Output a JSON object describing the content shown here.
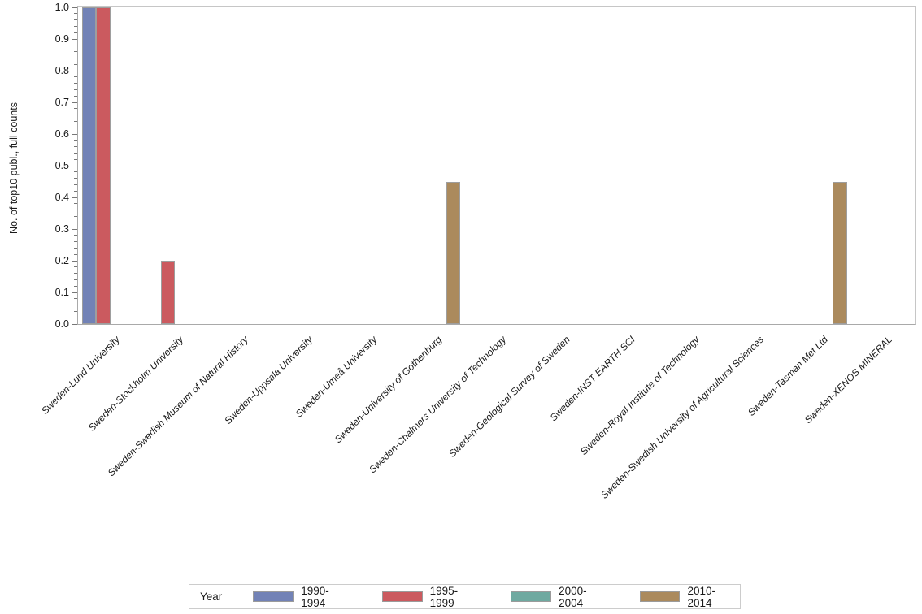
{
  "chart_data": {
    "type": "bar",
    "title": "",
    "xlabel": "",
    "ylabel": "No. of top10 publ., full counts",
    "ylim": [
      0.0,
      1.0
    ],
    "y_major_step": 0.1,
    "y_minor_per_major": 4,
    "y_tick_labels": [
      "0.0",
      "0.1",
      "0.2",
      "0.3",
      "0.4",
      "0.5",
      "0.6",
      "0.7",
      "0.8",
      "0.9",
      "1.0"
    ],
    "grid": false,
    "legend_title": "Year",
    "legend_position": "bottom",
    "categories": [
      "Sweden-Lund University",
      "Sweden-Stockholm University",
      "Sweden-Swedish Museum of Natural History",
      "Sweden-Uppsala University",
      "Sweden-Umeå University",
      "Sweden-University of Gothenburg",
      "Sweden-Chalmers University of Technology",
      "Sweden-Geological Survey of Sweden",
      "Sweden-INST EARTH SCI",
      "Sweden-Royal Institute of Technology",
      "Sweden-Swedish University of Agricultural Sciences",
      "Sweden-Tasman Met Ltd",
      "Sweden-XENOS MINERAL"
    ],
    "series": [
      {
        "name": "1990-1994",
        "color": "#7282b6",
        "values": [
          1.0,
          0,
          0,
          0,
          0,
          0,
          0,
          0,
          0,
          0,
          0,
          0,
          0
        ]
      },
      {
        "name": "1995-1999",
        "color": "#cb5a5f",
        "values": [
          1.0,
          0.2,
          0,
          0,
          0,
          0,
          0,
          0,
          0,
          0,
          0,
          0,
          0
        ]
      },
      {
        "name": "2000-2004",
        "color": "#6fa9a0",
        "values": [
          0,
          0,
          0,
          0,
          0,
          0,
          0,
          0,
          0,
          0,
          0,
          0,
          0
        ]
      },
      {
        "name": "2010-2014",
        "color": "#ab8a5d",
        "values": [
          0,
          0,
          0,
          0,
          0,
          0.45,
          0,
          0,
          0,
          0,
          0,
          0.45,
          0
        ]
      }
    ]
  },
  "colors": {
    "axis_line": "#a9a9a9",
    "frame_line": "#c6c6c6",
    "tick": "#777777",
    "bar_border": "#9e9e9e",
    "text": "#1a1a1a"
  }
}
